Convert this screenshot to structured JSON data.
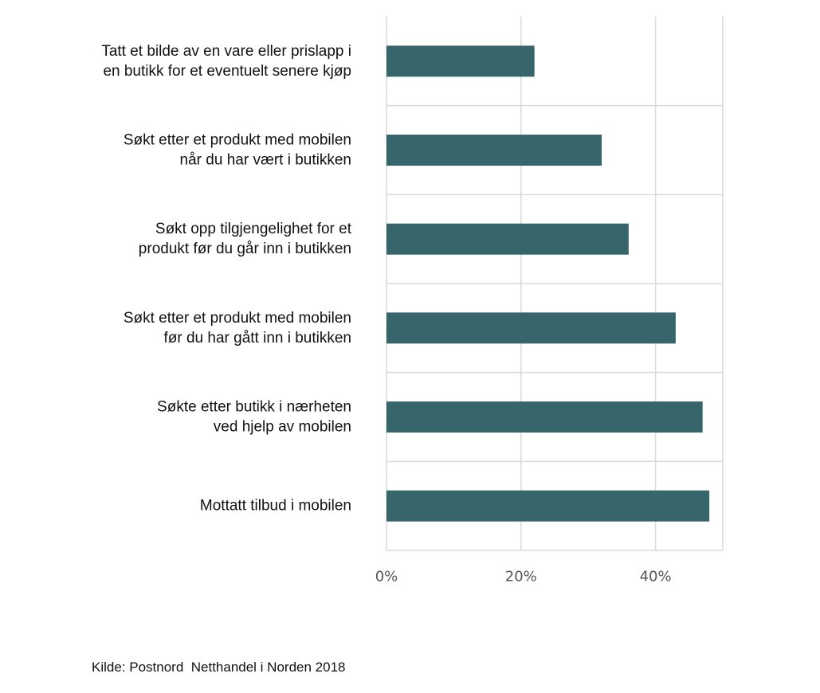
{
  "chart_data": {
    "type": "bar",
    "orientation": "horizontal",
    "categories": [
      [
        "Tatt et bilde av en vare eller prislapp i",
        "en butikk for et eventuelt senere kjøp"
      ],
      [
        "Søkt etter et produkt med mobilen",
        "når du har vært i butikken"
      ],
      [
        "Søkt opp tilgjengelighet for et",
        "produkt før du går inn i butikken"
      ],
      [
        "Søkt etter et produkt med mobilen",
        "før du har gått inn i butikken"
      ],
      [
        "Søkte etter butikk i nærheten",
        "ved hjelp av mobilen"
      ],
      [
        "Mottatt tilbud i mobilen"
      ]
    ],
    "values": [
      22,
      32,
      36,
      43,
      47,
      48
    ],
    "xlim": [
      0,
      50
    ],
    "xticks": [
      0,
      20,
      40
    ],
    "xtick_labels": [
      "0%",
      "20%",
      "40%"
    ],
    "grid": true,
    "bar_color": "#36666b",
    "grid_color": "#d9d9d9",
    "source": "Kilde: Postnord  Netthandel i Norden 2018"
  }
}
